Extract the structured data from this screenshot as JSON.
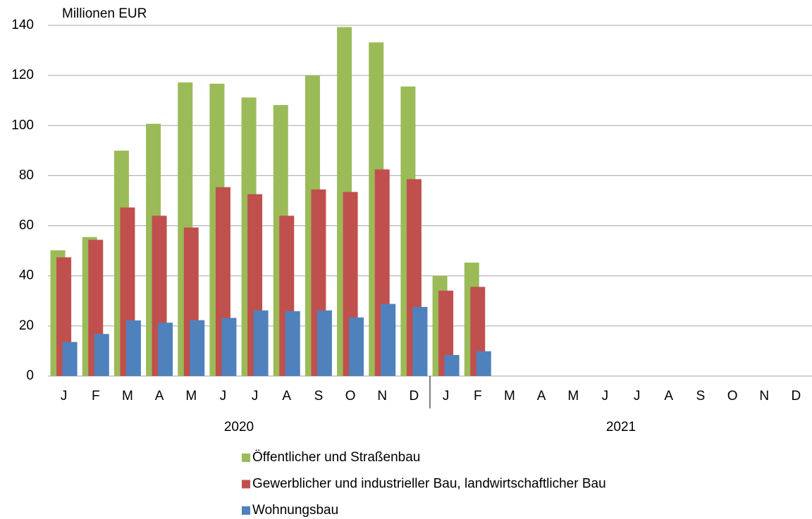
{
  "chart_data": {
    "type": "bar",
    "y_label": "Millionen EUR",
    "categories": [
      "J",
      "F",
      "M",
      "A",
      "M",
      "J",
      "J",
      "A",
      "S",
      "O",
      "N",
      "D",
      "J",
      "F",
      "M",
      "A",
      "M",
      "J",
      "J",
      "A",
      "S",
      "O",
      "N",
      "D"
    ],
    "years": [
      "2020",
      "2021"
    ],
    "series": [
      {
        "name": "Öffentlicher und Straßenbau",
        "color": "#9bbb59",
        "values": [
          50.2,
          55.5,
          90,
          100.7,
          117.2,
          116.7,
          111.2,
          108.2,
          120,
          139.3,
          133.2,
          115.6,
          40,
          45.3,
          null,
          null,
          null,
          null,
          null,
          null,
          null,
          null,
          null,
          null
        ]
      },
      {
        "name": "Gewerblicher und industrieller Bau, landwirtschaftlicher Bau",
        "color": "#c0504d",
        "values": [
          47.4,
          54.4,
          67.3,
          64,
          59.3,
          75.4,
          72.6,
          64,
          74.5,
          73.5,
          82.5,
          78.6,
          34.1,
          35.6,
          null,
          null,
          null,
          null,
          null,
          null,
          null,
          null,
          null,
          null
        ]
      },
      {
        "name": "Wohnungsbau",
        "color": "#4f81bd",
        "values": [
          13.6,
          16.8,
          22.2,
          21.3,
          22.3,
          23.2,
          26.2,
          25.9,
          26.2,
          23.4,
          28.8,
          27.6,
          8.4,
          9.9,
          null,
          null,
          null,
          null,
          null,
          null,
          null,
          null,
          null,
          null
        ]
      }
    ],
    "ylim": [
      0,
      140
    ],
    "yticks": [
      0,
      20,
      40,
      60,
      80,
      100,
      120,
      140
    ],
    "grid": true
  }
}
